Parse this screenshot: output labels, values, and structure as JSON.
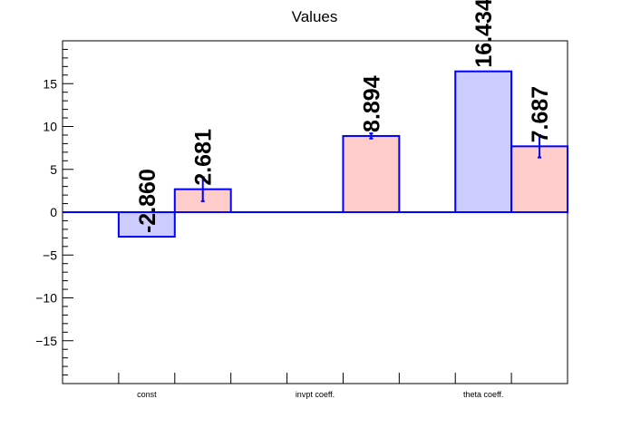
{
  "chart_data": {
    "type": "bar",
    "title": "Values",
    "xlabel": "",
    "ylabel": "",
    "categories": [
      "const",
      "invpt coeff.",
      "theta coeff."
    ],
    "ylim": [
      -20,
      20
    ],
    "y_ticks": [
      -15,
      -10,
      -5,
      0,
      5,
      10,
      15
    ],
    "y_tick_labels": [
      "−15",
      "−10",
      "−5",
      "0",
      "5",
      "10",
      "15"
    ],
    "grid": false,
    "series": [
      {
        "color": "#ccccff",
        "values": [
          -2.86,
          null,
          16.434
        ],
        "labels": [
          "-2.860",
          "",
          "16.434"
        ],
        "errors": [
          null,
          null,
          null
        ]
      },
      {
        "color": "#ffcccc",
        "values": [
          2.681,
          8.894,
          7.687
        ],
        "labels": [
          "2.681",
          "8.894",
          "7.687"
        ],
        "errors": [
          1.4,
          0.3,
          1.3
        ]
      }
    ],
    "bar_edge_color": "#0000ff",
    "zero_line_color": "#0000ff"
  }
}
